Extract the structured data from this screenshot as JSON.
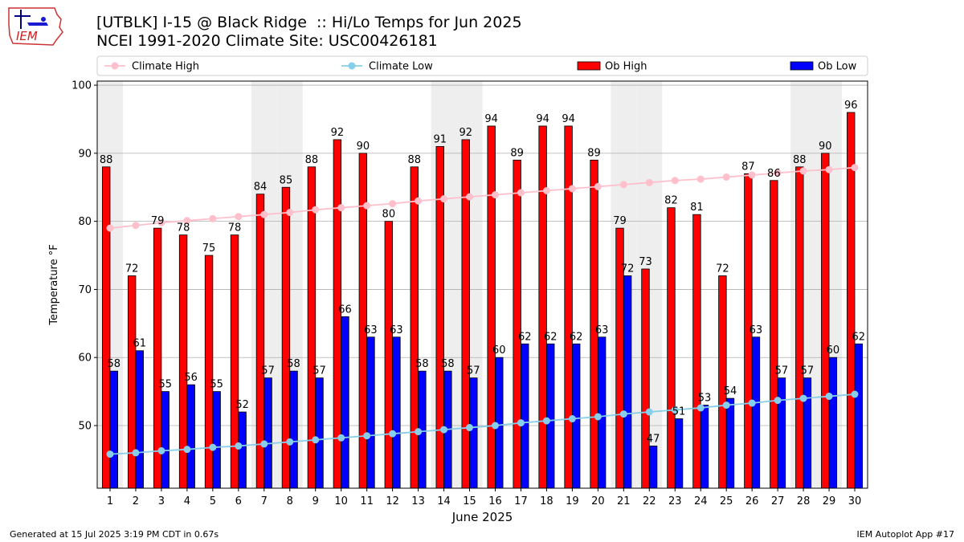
{
  "header": {
    "title_line1": "[UTBLK] I-15 @ Black Ridge  :: Hi/Lo Temps for Jun 2025",
    "title_line2": "NCEI 1991-2020 Climate Site: USC00426181",
    "logo_text": "IEM"
  },
  "footer": {
    "generated": "Generated at 15 Jul 2025 3:19 PM CDT in 0.67s",
    "app": "IEM Autoplot App #17"
  },
  "colors": {
    "ob_high": "#ff0000",
    "ob_low": "#0000ff",
    "climate_high": "#ffc0cb",
    "climate_low": "#87ceeb",
    "weekend_band": "#eeeeee",
    "grid": "#b0b0b0"
  },
  "chart_data": {
    "type": "bar",
    "xlabel": "June 2025",
    "ylabel": "Temperature °F",
    "ylim": [
      40.8,
      100.6
    ],
    "yticks": [
      50,
      60,
      70,
      80,
      90,
      100
    ],
    "grid": "horizontal",
    "legend_placement": "top",
    "categories": [
      "1",
      "2",
      "3",
      "4",
      "5",
      "6",
      "7",
      "8",
      "9",
      "10",
      "11",
      "12",
      "13",
      "14",
      "15",
      "16",
      "17",
      "18",
      "19",
      "20",
      "21",
      "22",
      "23",
      "24",
      "25",
      "26",
      "27",
      "28",
      "29",
      "30"
    ],
    "shaded_days": [
      "1",
      "7",
      "8",
      "14",
      "15",
      "21",
      "22",
      "28",
      "29"
    ],
    "series": [
      {
        "name": "Climate High",
        "kind": "line",
        "values": [
          79.0,
          79.4,
          79.8,
          80.1,
          80.4,
          80.7,
          81.0,
          81.3,
          81.7,
          82.0,
          82.3,
          82.6,
          83.0,
          83.3,
          83.6,
          83.9,
          84.2,
          84.5,
          84.8,
          85.1,
          85.4,
          85.7,
          86.0,
          86.2,
          86.5,
          86.8,
          87.1,
          87.4,
          87.6,
          87.9
        ]
      },
      {
        "name": "Climate Low",
        "kind": "line",
        "values": [
          45.8,
          46.0,
          46.3,
          46.5,
          46.8,
          47.0,
          47.3,
          47.6,
          47.9,
          48.2,
          48.5,
          48.8,
          49.1,
          49.4,
          49.7,
          50.0,
          50.4,
          50.7,
          51.0,
          51.3,
          51.7,
          52.0,
          52.3,
          52.6,
          53.0,
          53.3,
          53.7,
          54.0,
          54.3,
          54.6
        ]
      },
      {
        "name": "Ob High",
        "kind": "bar",
        "values": [
          88,
          72,
          79,
          78,
          75,
          78,
          84,
          85,
          88,
          92,
          90,
          80,
          88,
          91,
          92,
          94,
          89,
          94,
          94,
          89,
          79,
          73,
          82,
          81,
          72,
          87,
          86,
          88,
          90,
          96
        ]
      },
      {
        "name": "Ob Low",
        "kind": "bar",
        "values": [
          58,
          61,
          55,
          56,
          55,
          52,
          57,
          58,
          57,
          66,
          63,
          63,
          58,
          58,
          57,
          60,
          62,
          62,
          62,
          63,
          72,
          47,
          51,
          53,
          54,
          63,
          57,
          57,
          60,
          62
        ]
      }
    ]
  }
}
